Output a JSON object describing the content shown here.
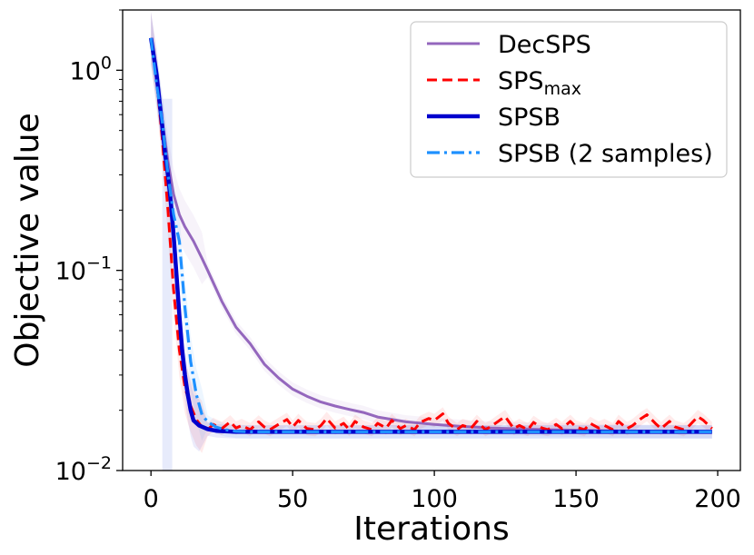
{
  "chart_data": {
    "type": "line",
    "xlabel": "Iterations",
    "ylabel": "Objective value",
    "yscale": "log",
    "xlim": [
      -10,
      208
    ],
    "ylim": [
      0.01,
      2.0
    ],
    "xticks": [
      0,
      50,
      100,
      150,
      200
    ],
    "yticks": [
      {
        "value": 1,
        "base": "10",
        "exp": "0"
      },
      {
        "value": 0.1,
        "base": "10",
        "exp": "−1"
      },
      {
        "value": 0.01,
        "base": "10",
        "exp": "−2"
      }
    ],
    "grid": false,
    "legend_position": "top-right",
    "series": [
      {
        "name": "DecSPS",
        "name_sub": "",
        "color": "#9467bd",
        "style": "solid",
        "x": [
          0,
          3,
          6,
          8,
          10,
          12,
          15,
          18,
          20,
          25,
          30,
          35,
          40,
          45,
          50,
          55,
          60,
          65,
          70,
          75,
          80,
          90,
          100,
          110,
          120,
          140,
          160,
          180,
          198
        ],
        "y": [
          1.45,
          0.7,
          0.35,
          0.24,
          0.19,
          0.165,
          0.14,
          0.115,
          0.1,
          0.07,
          0.052,
          0.043,
          0.034,
          0.029,
          0.0255,
          0.0235,
          0.022,
          0.021,
          0.0202,
          0.0195,
          0.0185,
          0.0175,
          0.017,
          0.0166,
          0.0163,
          0.016,
          0.0158,
          0.0157,
          0.0156
        ]
      },
      {
        "name": "SPS",
        "name_sub": "max",
        "color": "#ff0000",
        "style": "dashed",
        "x": [
          0,
          2,
          4,
          6,
          8,
          10,
          12,
          14,
          16,
          18,
          20,
          22,
          25,
          28,
          30,
          32,
          35,
          38,
          40,
          42,
          45,
          48,
          50,
          52,
          55,
          58,
          60,
          62,
          65,
          68,
          70,
          72,
          75,
          78,
          80,
          83,
          85,
          88,
          90,
          93,
          95,
          98,
          100,
          103,
          105,
          108,
          110,
          113,
          115,
          118,
          120,
          123,
          125,
          128,
          130,
          133,
          135,
          138,
          140,
          143,
          145,
          148,
          150,
          153,
          155,
          158,
          160,
          163,
          165,
          168,
          170,
          173,
          175,
          178,
          180,
          183,
          185,
          188,
          190,
          193,
          195,
          198
        ],
        "y": [
          1.45,
          0.9,
          0.45,
          0.2,
          0.08,
          0.04,
          0.026,
          0.021,
          0.018,
          0.0165,
          0.016,
          0.017,
          0.0162,
          0.0175,
          0.0163,
          0.0168,
          0.016,
          0.0175,
          0.0165,
          0.016,
          0.017,
          0.018,
          0.0165,
          0.0178,
          0.0162,
          0.016,
          0.0168,
          0.0182,
          0.0163,
          0.0172,
          0.016,
          0.0176,
          0.0165,
          0.016,
          0.0172,
          0.0163,
          0.0178,
          0.0162,
          0.0168,
          0.016,
          0.0174,
          0.0182,
          0.0178,
          0.0192,
          0.0172,
          0.016,
          0.0168,
          0.0163,
          0.0176,
          0.016,
          0.0166,
          0.0178,
          0.0186,
          0.0162,
          0.0168,
          0.016,
          0.0174,
          0.0163,
          0.016,
          0.017,
          0.0162,
          0.0176,
          0.0165,
          0.016,
          0.0172,
          0.0163,
          0.0168,
          0.016,
          0.0176,
          0.0162,
          0.0168,
          0.0182,
          0.019,
          0.0172,
          0.0162,
          0.0176,
          0.0165,
          0.016,
          0.0168,
          0.0186,
          0.0178,
          0.0162
        ]
      },
      {
        "name": "SPSB",
        "name_sub": "",
        "color": "#0000cd",
        "style": "solid-thick",
        "x": [
          0,
          2,
          3,
          4,
          5,
          6,
          7,
          8,
          9,
          10,
          11,
          12,
          13,
          14,
          15,
          17,
          20,
          23,
          26,
          30,
          35,
          50,
          100,
          150,
          198
        ],
        "y": [
          1.45,
          0.95,
          0.7,
          0.52,
          0.38,
          0.3,
          0.22,
          0.15,
          0.095,
          0.06,
          0.04,
          0.03,
          0.024,
          0.02,
          0.0178,
          0.0168,
          0.0161,
          0.0158,
          0.0157,
          0.0156,
          0.0156,
          0.0156,
          0.0156,
          0.0156,
          0.0156
        ]
      },
      {
        "name": "SPSB (2 samples)",
        "name_sub": "",
        "color": "#1e90ff",
        "style": "dashdot",
        "x": [
          0,
          2,
          4,
          6,
          8,
          10,
          12,
          14,
          16,
          18,
          20,
          23,
          26,
          30,
          35,
          50,
          100,
          150,
          198
        ],
        "y": [
          1.45,
          0.85,
          0.55,
          0.3,
          0.19,
          0.14,
          0.065,
          0.035,
          0.024,
          0.019,
          0.0175,
          0.0165,
          0.016,
          0.0157,
          0.0156,
          0.0156,
          0.0156,
          0.0156,
          0.0156
        ]
      }
    ]
  }
}
